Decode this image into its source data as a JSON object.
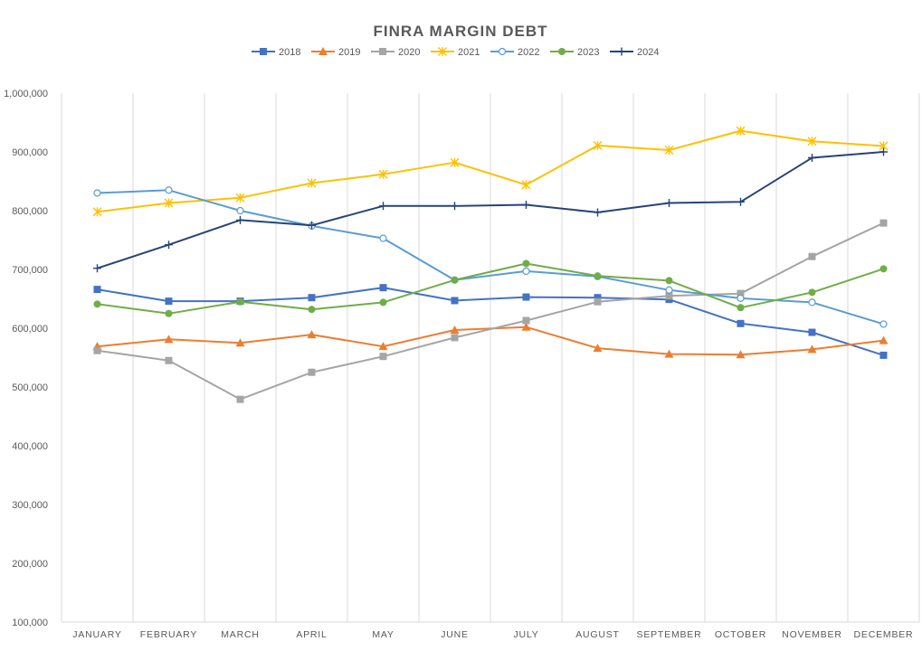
{
  "chart_data": {
    "type": "line",
    "title": "FINRA MARGIN DEBT",
    "xlabel": "",
    "ylabel": "",
    "categories": [
      "JANUARY",
      "FEBRUARY",
      "MARCH",
      "APRIL",
      "MAY",
      "JUNE",
      "JULY",
      "AUGUST",
      "SEPTEMBER",
      "OCTOBER",
      "NOVEMBER",
      "DECEMBER"
    ],
    "ylim": [
      100000,
      1000000
    ],
    "yticks": [
      100000,
      200000,
      300000,
      400000,
      500000,
      600000,
      700000,
      800000,
      900000,
      1000000
    ],
    "ytick_labels": [
      "100,000",
      "200,000",
      "300,000",
      "400,000",
      "500,000",
      "600,000",
      "700,000",
      "800,000",
      "900,000",
      "1,000,000"
    ],
    "grid": "vertical",
    "legend_position": "top",
    "series": [
      {
        "name": "2018",
        "color": "#4472C4",
        "marker": "square",
        "values": [
          666000,
          646000,
          646000,
          652000,
          669000,
          647000,
          653000,
          652000,
          649000,
          608000,
          593000,
          554000
        ]
      },
      {
        "name": "2019",
        "color": "#ED7D31",
        "marker": "triangle",
        "values": [
          569000,
          581000,
          575000,
          589000,
          569000,
          597000,
          602000,
          566000,
          556000,
          555000,
          564000,
          579000
        ]
      },
      {
        "name": "2020",
        "color": "#A5A5A5",
        "marker": "square",
        "values": [
          562000,
          545000,
          479000,
          525000,
          552000,
          584000,
          613000,
          645000,
          655000,
          659000,
          722000,
          779000
        ]
      },
      {
        "name": "2021",
        "color": "#FFC000",
        "marker": "star",
        "values": [
          798000,
          813000,
          822000,
          847000,
          862000,
          882000,
          844000,
          911000,
          903000,
          936000,
          918000,
          910000
        ]
      },
      {
        "name": "2022",
        "color": "#5B9BD5",
        "marker": "circle-open",
        "values": [
          830000,
          835000,
          800000,
          774000,
          753000,
          682000,
          697000,
          688000,
          665000,
          651000,
          644000,
          607000
        ]
      },
      {
        "name": "2023",
        "color": "#70AD47",
        "marker": "circle",
        "values": [
          641000,
          625000,
          645000,
          632000,
          644000,
          682000,
          710000,
          689000,
          681000,
          635000,
          661000,
          701000
        ]
      },
      {
        "name": "2024",
        "color": "#264478",
        "marker": "plus",
        "values": [
          702000,
          742000,
          784000,
          775000,
          808000,
          808000,
          810000,
          797000,
          813000,
          815000,
          890000,
          900000
        ]
      }
    ]
  }
}
